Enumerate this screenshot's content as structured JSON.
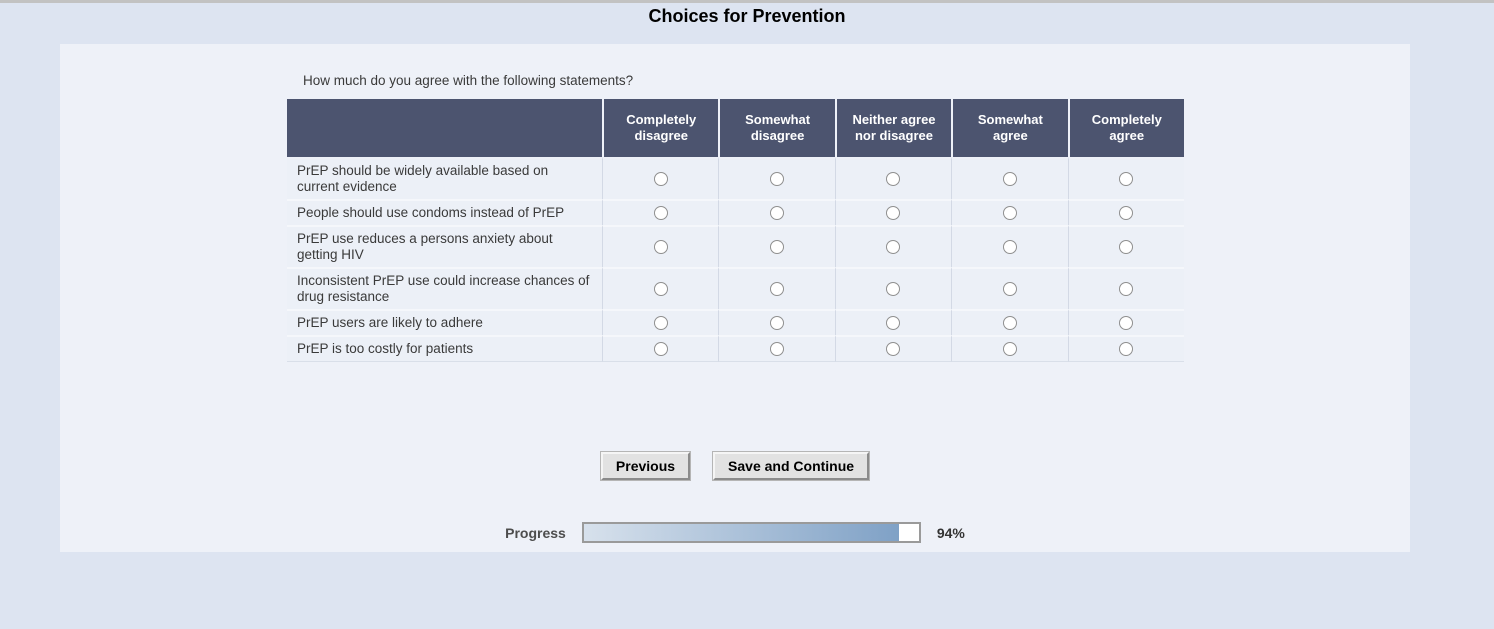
{
  "page": {
    "title": "Choices for Prevention"
  },
  "survey": {
    "question": "How much do you agree with the following statements?",
    "columns": [
      "Completely disagree",
      "Somewhat disagree",
      "Neither agree nor disagree",
      "Somewhat agree",
      "Completely agree"
    ],
    "rows": [
      "PrEP should be widely available based on current evidence",
      "People should use condoms instead of PrEP",
      "PrEP use reduces a persons anxiety about getting HIV",
      "Inconsistent PrEP use could increase chances of drug resistance",
      "PrEP users are likely to adhere",
      "PrEP is too costly for patients"
    ]
  },
  "buttons": {
    "previous": "Previous",
    "save_continue": "Save and Continue"
  },
  "progress": {
    "label": "Progress",
    "percent": 94,
    "percent_label": "94%"
  },
  "colors": {
    "header_bg": "#4c546f",
    "page_bg": "#dde4f1",
    "panel_bg": "#eef1f8",
    "progress_fill_start": "#d7e1ec",
    "progress_fill_end": "#7fa1c6"
  }
}
